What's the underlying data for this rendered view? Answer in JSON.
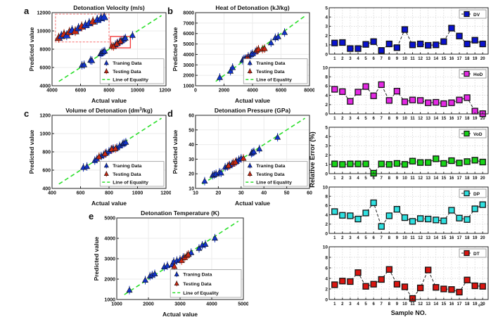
{
  "colors": {
    "training": "#1133cc",
    "testing": "#cc2812",
    "equality": "#2bdf2b",
    "zoom_box": "#f34040",
    "inset_border": "#f98a8a"
  },
  "relative_error_ylabel": "Relative Error (%)",
  "sample_axis_label": "Sample NO.",
  "return_mark": "↵",
  "chart_data": [
    {
      "type": "scatter",
      "panel_label": "a",
      "title": "Detonation Velocity (m/s)",
      "xlabel": "Actual value",
      "ylabel": "Predicted value",
      "xlim": [
        4000,
        12000
      ],
      "ylim": [
        4000,
        12000
      ],
      "xticks": [
        4000,
        6000,
        8000,
        10000,
        12000
      ],
      "yticks": [
        4000,
        6000,
        8000,
        10000,
        12000
      ],
      "equality_label": "Line of Equality",
      "series": [
        {
          "name": "Traning Data",
          "color_key": "training",
          "points": [
            [
              6100,
              6250
            ],
            [
              6250,
              6300
            ],
            [
              6700,
              6800
            ],
            [
              6800,
              6760
            ],
            [
              7400,
              7500
            ],
            [
              7500,
              7620
            ],
            [
              7600,
              7730
            ],
            [
              7700,
              7790
            ],
            [
              8450,
              8500
            ],
            [
              8600,
              8680
            ],
            [
              8750,
              8800
            ],
            [
              8900,
              8950
            ],
            [
              9050,
              9100
            ],
            [
              9150,
              9220
            ],
            [
              9650,
              9520
            ]
          ]
        },
        {
          "name": "Testing Data",
          "color_key": "testing",
          "points": [
            [
              8200,
              8350
            ],
            [
              8320,
              8300
            ],
            [
              8550,
              8600
            ],
            [
              8800,
              8870
            ]
          ]
        }
      ],
      "zoom_rect": [
        8100,
        8150,
        9500,
        9400
      ],
      "inset": {
        "frac": [
          0.03,
          0.02,
          0.47,
          0.38
        ],
        "points": [
          [
            0.06,
            0.85,
            "testing"
          ],
          [
            0.11,
            0.78,
            "training"
          ],
          [
            0.16,
            0.72,
            "testing"
          ],
          [
            0.21,
            0.76,
            "training"
          ],
          [
            0.26,
            0.64,
            "testing"
          ],
          [
            0.31,
            0.58,
            "training"
          ],
          [
            0.37,
            0.61,
            "testing"
          ],
          [
            0.43,
            0.5,
            "training"
          ],
          [
            0.49,
            0.44,
            "testing"
          ],
          [
            0.56,
            0.39,
            "training"
          ],
          [
            0.63,
            0.32,
            "training"
          ],
          [
            0.7,
            0.26,
            "testing"
          ],
          [
            0.78,
            0.2,
            "training"
          ],
          [
            0.85,
            0.14,
            "training"
          ],
          [
            0.91,
            0.1,
            "training"
          ]
        ]
      }
    },
    {
      "type": "scatter",
      "panel_label": "b",
      "title": "Heat of Detonation (kJ/kg)",
      "xlabel": "Actual value",
      "ylabel": "Predicted value",
      "xlim": [
        0,
        8000
      ],
      "ylim": [
        1000,
        8000
      ],
      "xticks": [
        0,
        2000,
        4000,
        6000,
        8000
      ],
      "yticks": [
        1000,
        2000,
        3000,
        4000,
        5000,
        6000,
        7000,
        8000
      ],
      "equality_label": "Line of Equality",
      "series": [
        {
          "name": "Traning Data",
          "color_key": "training",
          "points": [
            [
              1700,
              1800
            ],
            [
              2450,
              2400
            ],
            [
              2600,
              2750
            ],
            [
              3300,
              3450
            ],
            [
              3400,
              3560
            ],
            [
              3500,
              3600
            ],
            [
              3550,
              3500
            ],
            [
              3700,
              3820
            ],
            [
              3900,
              4000
            ],
            [
              4000,
              4080
            ],
            [
              4200,
              4250
            ],
            [
              5300,
              5120
            ],
            [
              5600,
              5600
            ],
            [
              5800,
              5700
            ],
            [
              6250,
              6100
            ]
          ]
        },
        {
          "name": "Testing Data",
          "color_key": "testing",
          "points": [
            [
              3600,
              3620
            ],
            [
              3720,
              3560
            ],
            [
              4300,
              4400
            ],
            [
              4420,
              4500
            ],
            [
              4700,
              4510
            ],
            [
              4850,
              4560
            ]
          ]
        }
      ]
    },
    {
      "type": "scatter",
      "panel_label": "c",
      "title": "Volume of Detonation (dm^3/kg)",
      "xlabel": "Actual value",
      "ylabel": "Predicted value",
      "xlim": [
        400,
        1200
      ],
      "ylim": [
        400,
        1200
      ],
      "xticks": [
        400,
        600,
        800,
        1000,
        1200
      ],
      "yticks": [
        400,
        600,
        800,
        1000,
        1200
      ],
      "equality_label": "Line of Equality",
      "series": [
        {
          "name": "Traning Data",
          "color_key": "training",
          "points": [
            [
              620,
              630
            ],
            [
              645,
              640
            ],
            [
              700,
              705
            ],
            [
              715,
              722
            ],
            [
              745,
              755
            ],
            [
              762,
              768
            ],
            [
              780,
              790
            ],
            [
              800,
              806
            ],
            [
              815,
              825
            ],
            [
              830,
              836
            ],
            [
              855,
              846
            ],
            [
              875,
              866
            ],
            [
              895,
              886
            ],
            [
              905,
              896
            ],
            [
              918,
              905
            ]
          ]
        },
        {
          "name": "Testing Data",
          "color_key": "testing",
          "points": [
            [
              730,
              747
            ],
            [
              772,
              781
            ],
            [
              820,
              830
            ],
            [
              845,
              836
            ]
          ]
        }
      ]
    },
    {
      "type": "scatter",
      "panel_label": "d",
      "title": "Detonation Pressure (GPa)",
      "xlabel": "Actual value",
      "ylabel": "Predicted value",
      "xlim": [
        10,
        60
      ],
      "ylim": [
        10,
        60
      ],
      "xticks": [
        10,
        20,
        30,
        40,
        50,
        60
      ],
      "yticks": [
        10,
        20,
        30,
        40,
        50,
        60
      ],
      "equality_label": "Line of Equality",
      "series": [
        {
          "name": "Traning Data",
          "color_key": "training",
          "points": [
            [
              14,
              15
            ],
            [
              17.5,
              19
            ],
            [
              18.2,
              19.5
            ],
            [
              19,
              20
            ],
            [
              20.5,
              21
            ],
            [
              21.2,
              20.6
            ],
            [
              23,
              24.5
            ],
            [
              24,
              25
            ],
            [
              25,
              26
            ],
            [
              26,
              26.6
            ],
            [
              28,
              28.5
            ],
            [
              29,
              29.6
            ],
            [
              30,
              30.6
            ],
            [
              34.5,
              34
            ],
            [
              35,
              34.6
            ],
            [
              35.6,
              35.1
            ],
            [
              38,
              37
            ],
            [
              46,
              45
            ]
          ]
        },
        {
          "name": "Testing Data",
          "color_key": "testing",
          "points": [
            [
              24.5,
              25.6
            ],
            [
              26.5,
              27.5
            ],
            [
              27.5,
              28.1
            ],
            [
              31,
              30.6
            ]
          ]
        }
      ]
    },
    {
      "type": "scatter",
      "panel_label": "e",
      "title": "Detonation Temperature (K)",
      "xlabel": "Actual value",
      "ylabel": "Predicted value",
      "xlim": [
        1000,
        5000
      ],
      "ylim": [
        1000,
        5000
      ],
      "xticks": [
        1000,
        2000,
        3000,
        4000,
        5000
      ],
      "yticks": [
        1000,
        2000,
        3000,
        4000,
        5000
      ],
      "equality_label": "Line of Equality",
      "series": [
        {
          "name": "Traning Data",
          "color_key": "training",
          "points": [
            [
              1400,
              1460
            ],
            [
              1900,
              1950
            ],
            [
              2050,
              2150
            ],
            [
              2120,
              2200
            ],
            [
              2200,
              2260
            ],
            [
              2500,
              2600
            ],
            [
              2600,
              2660
            ],
            [
              2750,
              2710
            ],
            [
              2800,
              2860
            ],
            [
              2900,
              2910
            ],
            [
              3000,
              2960
            ],
            [
              3100,
              3060
            ],
            [
              3350,
              3300
            ],
            [
              3600,
              3510
            ],
            [
              3700,
              3660
            ],
            [
              3800,
              3710
            ],
            [
              4100,
              4010
            ]
          ]
        },
        {
          "name": "Testing Data",
          "color_key": "testing",
          "points": [
            [
              2820,
              2620
            ],
            [
              3050,
              2910
            ],
            [
              3150,
              3060
            ],
            [
              3220,
              3160
            ],
            [
              3260,
              3210
            ]
          ]
        }
      ]
    },
    {
      "type": "line",
      "label": "DV",
      "color": "#0a12cf",
      "ylim": [
        0,
        5
      ],
      "yticks": [
        0,
        1,
        2,
        3,
        4,
        5
      ],
      "x": [
        1,
        2,
        3,
        4,
        5,
        6,
        7,
        8,
        9,
        10,
        11,
        12,
        13,
        14,
        15,
        16,
        17,
        18,
        19,
        20
      ],
      "values": [
        1.2,
        1.25,
        0.6,
        0.6,
        1.05,
        1.35,
        0.4,
        1.1,
        0.7,
        2.65,
        1.0,
        1.1,
        0.95,
        1.0,
        1.35,
        2.8,
        1.95,
        1.1,
        1.5,
        1.1
      ]
    },
    {
      "type": "line",
      "label": "HoD",
      "color": "#e428e4",
      "ylim": [
        0,
        10
      ],
      "yticks": [
        0,
        2,
        4,
        6,
        8,
        10
      ],
      "x": [
        1,
        2,
        3,
        4,
        5,
        6,
        7,
        8,
        9,
        10,
        11,
        12,
        13,
        14,
        15,
        16,
        17,
        18,
        19,
        20
      ],
      "values": [
        5.3,
        4.8,
        2.7,
        4.7,
        5.9,
        3.9,
        6.3,
        2.9,
        4.9,
        2.6,
        3.0,
        2.9,
        2.4,
        2.5,
        2.2,
        2.4,
        3.0,
        3.5,
        0.6,
        0.05
      ]
    },
    {
      "type": "line",
      "label": "VoD",
      "color": "#17d417",
      "ylim": [
        0,
        5
      ],
      "yticks": [
        0,
        1,
        2,
        3,
        4,
        5
      ],
      "x": [
        1,
        2,
        3,
        4,
        5,
        6,
        7,
        8,
        9,
        10,
        11,
        12,
        13,
        14,
        15,
        16,
        17,
        18,
        19,
        20
      ],
      "values": [
        1.05,
        1.0,
        1.05,
        1.05,
        1.05,
        0.05,
        1.05,
        1.0,
        1.1,
        1.0,
        1.35,
        1.2,
        1.2,
        1.6,
        1.1,
        1.4,
        1.15,
        1.3,
        1.45,
        1.25
      ]
    },
    {
      "type": "line",
      "label": "DP",
      "color": "#2ee0e0",
      "ylim": [
        0,
        10
      ],
      "yticks": [
        0,
        2,
        4,
        6,
        8,
        10
      ],
      "x": [
        1,
        2,
        3,
        4,
        5,
        6,
        7,
        8,
        9,
        10,
        11,
        12,
        13,
        14,
        15,
        16,
        17,
        18,
        19,
        20
      ],
      "values": [
        4.7,
        3.9,
        3.8,
        3.1,
        4.4,
        6.6,
        1.5,
        3.8,
        5.2,
        3.4,
        2.6,
        3.2,
        3.1,
        2.9,
        2.7,
        5.0,
        3.3,
        3.0,
        5.3,
        6.2
      ]
    },
    {
      "type": "line",
      "label": "DT",
      "color": "#da1510",
      "ylim": [
        0,
        10
      ],
      "yticks": [
        0,
        2,
        4,
        6,
        8,
        10
      ],
      "x": [
        1,
        2,
        3,
        4,
        5,
        6,
        7,
        8,
        9,
        10,
        11,
        12,
        13,
        14,
        15,
        16,
        17,
        18,
        19,
        20
      ],
      "values": [
        2.8,
        3.5,
        3.4,
        5.1,
        2.5,
        2.9,
        3.8,
        5.7,
        2.9,
        2.4,
        0.2,
        2.2,
        5.6,
        2.3,
        2.0,
        1.9,
        1.4,
        3.7,
        2.6,
        2.5
      ],
      "has_xlabel": true
    }
  ]
}
